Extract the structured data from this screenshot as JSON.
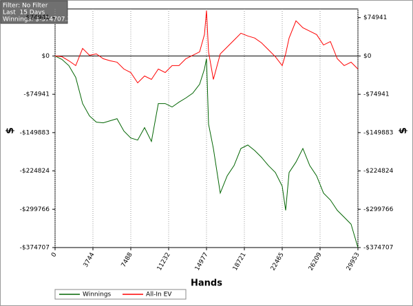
{
  "info": {
    "lines": [
      "Filter: No Filter",
      "Last  15 Days",
      "Winnings: $-374707.30"
    ]
  },
  "chart_data": {
    "type": "line",
    "x_label": "Hands",
    "y_label": "$",
    "x": [
      0,
      681,
      1361,
      2042,
      2723,
      3404,
      4084,
      4765,
      5446,
      6126,
      6807,
      7488,
      8168,
      8849,
      9530,
      10211,
      10891,
      11572,
      12253,
      12933,
      13614,
      14295,
      14771,
      14977,
      15181,
      15660,
      16341,
      17021,
      17702,
      18383,
      19063,
      19744,
      20425,
      21106,
      21786,
      22467,
      22807,
      23148,
      23828,
      24509,
      25190,
      25870,
      26551,
      27232,
      27913,
      28593,
      29274,
      29953
    ],
    "series": [
      {
        "name": "Winnings",
        "color": "#006400",
        "values": [
          0,
          -6740,
          -18872,
          -41788,
          -93012,
          -117276,
          -129408,
          -130756,
          -126712,
          -122668,
          -146932,
          -160412,
          -164456,
          -140192,
          -167152,
          -93012,
          -93012,
          -99752,
          -90316,
          -82228,
          -72792,
          -55268,
          -25612,
          -5392,
          -133452,
          -180864,
          -268252,
          -234552,
          -214332,
          -180864,
          -174124,
          -184908,
          -198388,
          -214332,
          -227812,
          -254772,
          -301952,
          -227812,
          -207592,
          -180864,
          -214332,
          -234552,
          -268252,
          -281732,
          -301952,
          -315432,
          -328912,
          -374707
        ]
      },
      {
        "name": "All-In EV",
        "color": "#ff0000",
        "values": [
          0,
          -1348,
          -9436,
          -18872,
          14828,
          1348,
          4044,
          -5392,
          -9436,
          -12132,
          -25612,
          -32352,
          -52572,
          -39092,
          -45832,
          -25612,
          -32352,
          -18872,
          -18872,
          -5392,
          1348,
          8088,
          41788,
          88968,
          8088,
          -45832,
          4044,
          17524,
          31004,
          44484,
          39092,
          35048,
          25612,
          12132,
          -1348,
          -18872,
          4044,
          35048,
          68748,
          55268,
          48528,
          41788,
          21572,
          28308,
          -5392,
          -18872,
          -12132,
          -25612
        ]
      }
    ],
    "xlim": [
      0,
      29953
    ],
    "xticks": [
      0,
      3744,
      7488,
      11232,
      14977,
      18721,
      22465,
      26209,
      29953
    ],
    "ylim": [
      -374707,
      92000
    ],
    "yticks": [
      {
        "value": 74941,
        "label": "$74941"
      },
      {
        "value": 0,
        "label": "$0"
      },
      {
        "value": -74941,
        "label": "-$74941"
      },
      {
        "value": -149883,
        "label": "-$149883"
      },
      {
        "value": -224824,
        "label": "-$224824"
      },
      {
        "value": -299766,
        "label": "-$299766"
      },
      {
        "value": -374707,
        "label": "-$374707"
      }
    ],
    "grid": true
  }
}
